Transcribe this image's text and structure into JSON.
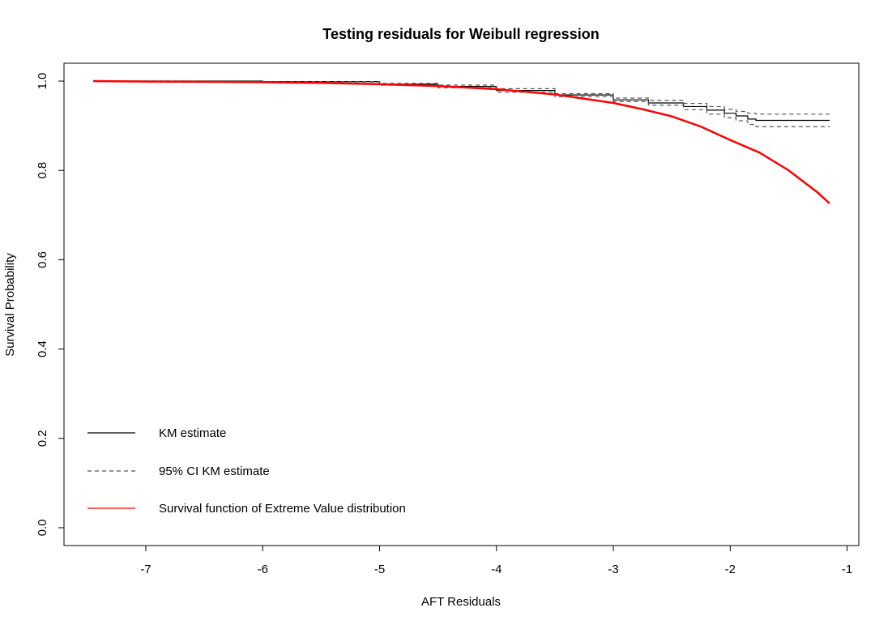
{
  "chart_data": {
    "type": "line",
    "title": "Testing residuals for Weibull regression",
    "xlabel": "AFT Residuals",
    "ylabel": "Survival Probability",
    "xlim": [
      -7.7,
      -0.9
    ],
    "ylim": [
      -0.04,
      1.04
    ],
    "x_ticks": [
      -7,
      -6,
      -5,
      -4,
      -3,
      -2,
      -1
    ],
    "x_tick_labels": [
      "-7",
      "-6",
      "-5",
      "-4",
      "-3",
      "-2",
      "-1"
    ],
    "y_ticks": [
      0.0,
      0.2,
      0.4,
      0.6,
      0.8,
      1.0
    ],
    "y_tick_labels": [
      "0.0",
      "0.2",
      "0.4",
      "0.6",
      "0.8",
      "1.0"
    ],
    "grid": false,
    "legend_position": "bottom-left",
    "legend": [
      {
        "label": "KM estimate",
        "color": "#000000",
        "style": "solid"
      },
      {
        "label": "95% CI KM estimate",
        "color": "#555555",
        "style": "dashed"
      },
      {
        "label": "Survival function of Extreme Value distribution",
        "color": "#ff0000",
        "style": "solid"
      }
    ],
    "series": [
      {
        "key": "km",
        "color": "#000000",
        "style": "solid",
        "step": true,
        "x": [
          -7.45,
          -6.0,
          -5.0,
          -4.5,
          -4.0,
          -3.5,
          -3.0,
          -2.7,
          -2.4,
          -2.2,
          -2.05,
          -1.95,
          -1.85,
          -1.78,
          -1.15
        ],
        "y": [
          1.0,
          0.999,
          0.993,
          0.988,
          0.979,
          0.969,
          0.958,
          0.951,
          0.943,
          0.935,
          0.928,
          0.922,
          0.915,
          0.912,
          0.912
        ]
      },
      {
        "key": "ci_upper",
        "color": "#555555",
        "style": "dashed",
        "step": true,
        "x": [
          -7.45,
          -6.0,
          -5.0,
          -4.5,
          -4.0,
          -3.5,
          -3.0,
          -2.7,
          -2.4,
          -2.2,
          -2.05,
          -1.95,
          -1.85,
          -1.78,
          -1.15
        ],
        "y": [
          1.0,
          0.999,
          0.995,
          0.991,
          0.983,
          0.972,
          0.962,
          0.957,
          0.95,
          0.943,
          0.937,
          0.932,
          0.928,
          0.926,
          0.926
        ]
      },
      {
        "key": "ci_lower",
        "color": "#555555",
        "style": "dashed",
        "step": true,
        "x": [
          -7.45,
          -6.0,
          -5.0,
          -4.5,
          -4.0,
          -3.5,
          -3.0,
          -2.7,
          -2.4,
          -2.2,
          -2.05,
          -1.95,
          -1.85,
          -1.78,
          -1.15
        ],
        "y": [
          1.0,
          0.998,
          0.991,
          0.985,
          0.975,
          0.965,
          0.954,
          0.946,
          0.936,
          0.926,
          0.918,
          0.911,
          0.903,
          0.898,
          0.898
        ]
      },
      {
        "key": "extreme_value",
        "color": "#ff0000",
        "style": "solid",
        "step": false,
        "x": [
          -7.45,
          -7.0,
          -6.5,
          -6.0,
          -5.5,
          -5.0,
          -4.5,
          -4.0,
          -3.5,
          -3.0,
          -2.75,
          -2.5,
          -2.25,
          -2.0,
          -1.75,
          -1.5,
          -1.25,
          -1.15
        ],
        "y": [
          1.0,
          0.999,
          0.9985,
          0.9975,
          0.996,
          0.993,
          0.989,
          0.982,
          0.97,
          0.951,
          0.937,
          0.921,
          0.898,
          0.868,
          0.84,
          0.8,
          0.75,
          0.726
        ]
      }
    ]
  }
}
